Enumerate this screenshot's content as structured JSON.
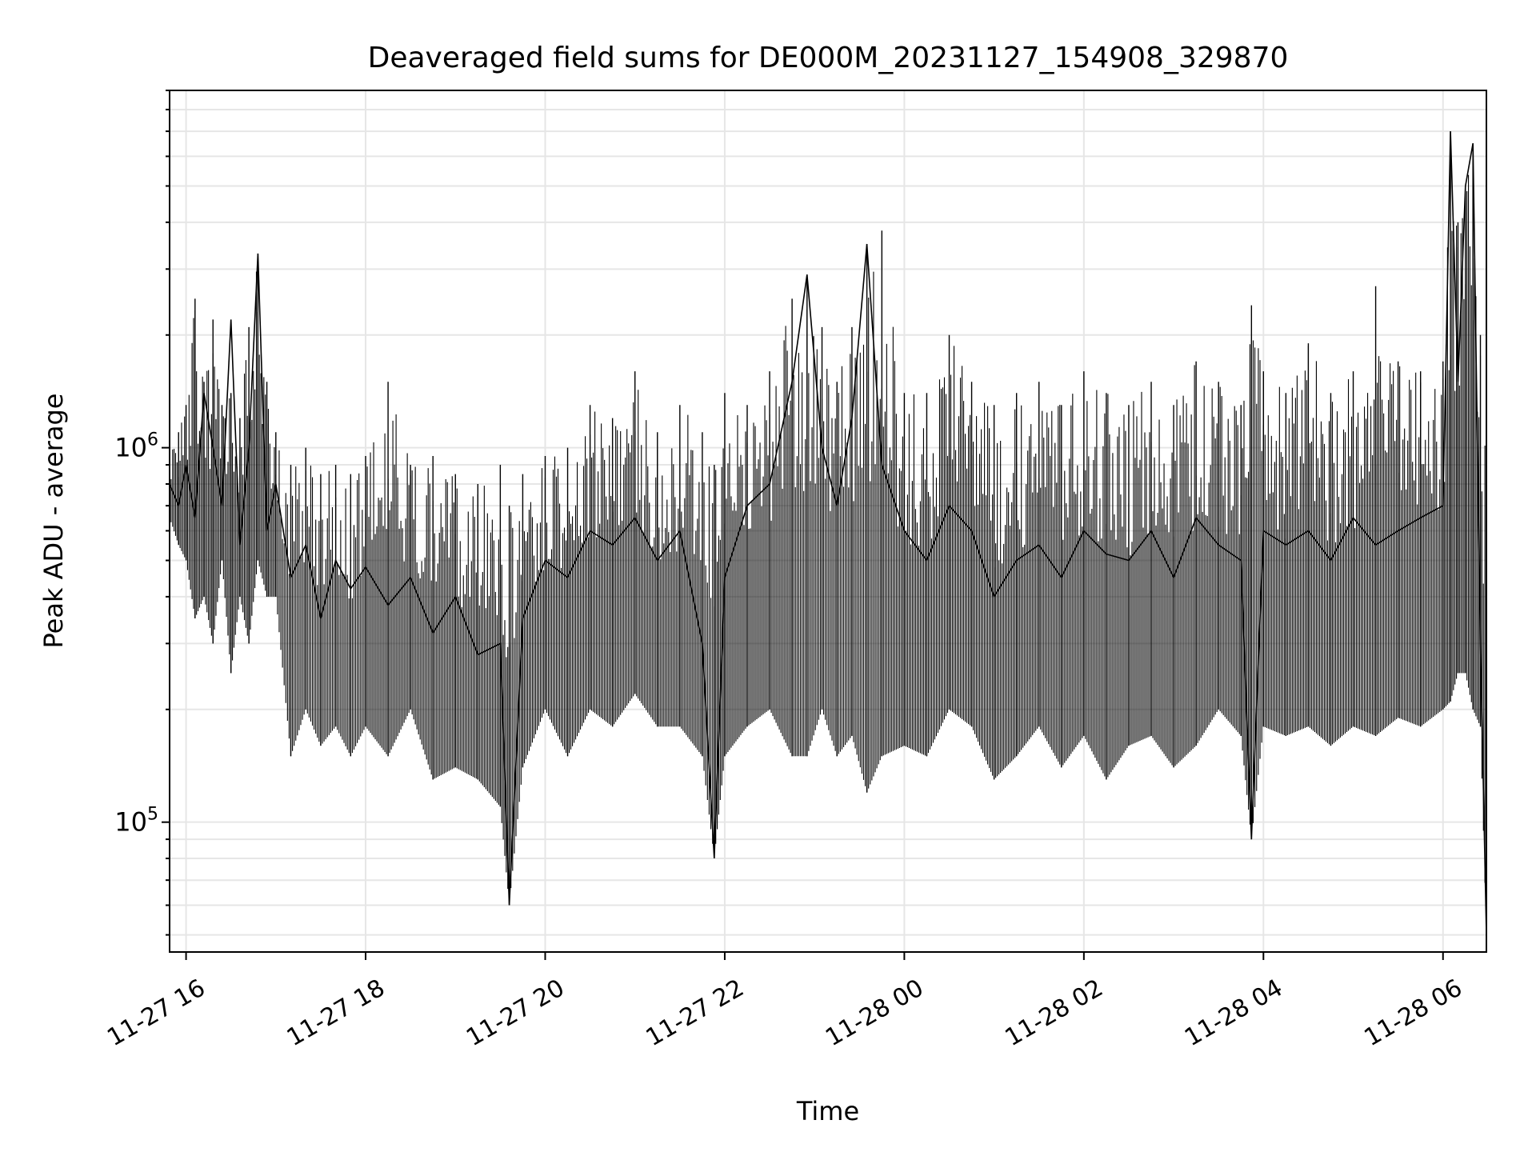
{
  "chart_data": {
    "type": "line",
    "title": "Deaveraged field sums for DE000M_20231127_154908_329870",
    "xlabel": "Time",
    "ylabel": "Peak ADU - average",
    "yscale": "log",
    "xlim": [
      "2023-11-27 15:49",
      "2023-11-28 06:29"
    ],
    "ylim": [
      45000,
      9000000
    ],
    "grid": true,
    "line_color": "#000000",
    "grid_color": "#e6e6e6",
    "x_ticks": [
      {
        "label": "11-27 16",
        "value": "2023-11-27 16:00"
      },
      {
        "label": "11-27 18",
        "value": "2023-11-27 18:00"
      },
      {
        "label": "11-27 20",
        "value": "2023-11-27 20:00"
      },
      {
        "label": "11-27 22",
        "value": "2023-11-27 22:00"
      },
      {
        "label": "11-28 00",
        "value": "2023-11-28 00:00"
      },
      {
        "label": "11-28 02",
        "value": "2023-11-28 02:00"
      },
      {
        "label": "11-28 04",
        "value": "2023-11-28 04:00"
      },
      {
        "label": "11-28 06",
        "value": "2023-11-28 06:00"
      }
    ],
    "y_ticks": [
      {
        "base": "10",
        "exp": "5",
        "value": 100000
      },
      {
        "base": "10",
        "exp": "6",
        "value": 1000000
      }
    ],
    "series": [
      {
        "x": [
          "2023-11-27 15:49",
          "2023-11-27 15:55",
          "2023-11-27 16:00",
          "2023-11-27 16:06",
          "2023-11-27 16:12",
          "2023-11-27 16:18",
          "2023-11-27 16:24",
          "2023-11-27 16:30",
          "2023-11-27 16:36",
          "2023-11-27 16:42",
          "2023-11-27 16:48",
          "2023-11-27 16:54",
          "2023-11-27 17:00",
          "2023-11-27 17:10",
          "2023-11-27 17:20",
          "2023-11-27 17:30",
          "2023-11-27 17:40",
          "2023-11-27 17:50",
          "2023-11-27 18:00",
          "2023-11-27 18:15",
          "2023-11-27 18:30",
          "2023-11-27 18:45",
          "2023-11-27 19:00",
          "2023-11-27 19:15",
          "2023-11-27 19:30",
          "2023-11-27 19:36",
          "2023-11-27 19:45",
          "2023-11-27 20:00",
          "2023-11-27 20:15",
          "2023-11-27 20:30",
          "2023-11-27 20:45",
          "2023-11-27 21:00",
          "2023-11-27 21:15",
          "2023-11-27 21:30",
          "2023-11-27 21:45",
          "2023-11-27 21:53",
          "2023-11-27 22:00",
          "2023-11-27 22:15",
          "2023-11-27 22:30",
          "2023-11-27 22:45",
          "2023-11-27 22:55",
          "2023-11-27 23:05",
          "2023-11-27 23:15",
          "2023-11-27 23:25",
          "2023-11-27 23:35",
          "2023-11-27 23:45",
          "2023-11-28 00:00",
          "2023-11-28 00:15",
          "2023-11-28 00:30",
          "2023-11-28 00:45",
          "2023-11-28 01:00",
          "2023-11-28 01:15",
          "2023-11-28 01:30",
          "2023-11-28 01:45",
          "2023-11-28 02:00",
          "2023-11-28 02:15",
          "2023-11-28 02:30",
          "2023-11-28 02:45",
          "2023-11-28 03:00",
          "2023-11-28 03:15",
          "2023-11-28 03:30",
          "2023-11-28 03:45",
          "2023-11-28 03:52",
          "2023-11-28 04:00",
          "2023-11-28 04:15",
          "2023-11-28 04:30",
          "2023-11-28 04:45",
          "2023-11-28 05:00",
          "2023-11-28 05:15",
          "2023-11-28 05:30",
          "2023-11-28 05:45",
          "2023-11-28 06:00",
          "2023-11-28 06:05",
          "2023-11-28 06:10",
          "2023-11-28 06:15",
          "2023-11-28 06:20",
          "2023-11-28 06:25",
          "2023-11-28 06:29"
        ],
        "y": [
          800000,
          700000,
          900000,
          650000,
          1400000,
          1000000,
          700000,
          2200000,
          550000,
          1000000,
          3300000,
          600000,
          800000,
          450000,
          550000,
          350000,
          500000,
          420000,
          480000,
          380000,
          450000,
          320000,
          400000,
          280000,
          300000,
          60000,
          350000,
          500000,
          450000,
          600000,
          550000,
          650000,
          500000,
          600000,
          300000,
          80000,
          450000,
          700000,
          800000,
          1500000,
          2900000,
          1000000,
          700000,
          1200000,
          3500000,
          900000,
          600000,
          500000,
          700000,
          600000,
          400000,
          500000,
          550000,
          450000,
          600000,
          520000,
          500000,
          600000,
          450000,
          650000,
          550000,
          500000,
          90000,
          600000,
          550000,
          600000,
          500000,
          650000,
          550000,
          600000,
          650000,
          700000,
          7000000,
          1500000,
          5000000,
          6500000,
          300000,
          50000
        ],
        "low": [
          650000,
          550000,
          500000,
          350000,
          400000,
          300000,
          500000,
          250000,
          400000,
          300000,
          500000,
          400000,
          400000,
          150000,
          200000,
          160000,
          180000,
          150000,
          180000,
          150000,
          200000,
          130000,
          140000,
          130000,
          110000,
          60000,
          140000,
          200000,
          150000,
          200000,
          180000,
          220000,
          180000,
          180000,
          150000,
          80000,
          150000,
          180000,
          200000,
          150000,
          150000,
          200000,
          150000,
          170000,
          120000,
          150000,
          160000,
          150000,
          200000,
          180000,
          130000,
          150000,
          180000,
          140000,
          170000,
          130000,
          160000,
          170000,
          140000,
          160000,
          200000,
          170000,
          90000,
          180000,
          170000,
          180000,
          160000,
          180000,
          170000,
          190000,
          180000,
          200000,
          210000,
          250000,
          250000,
          200000,
          180000,
          50000
        ],
        "high": [
          950000,
          1100000,
          1300000,
          2500000,
          1500000,
          2200000,
          1300000,
          1400000,
          1200000,
          2100000,
          3300000,
          1500000,
          1100000,
          900000,
          1000000,
          850000,
          900000,
          850000,
          950000,
          1500000,
          900000,
          950000,
          850000,
          800000,
          900000,
          700000,
          850000,
          950000,
          1000000,
          1300000,
          1200000,
          1600000,
          1100000,
          1300000,
          1100000,
          900000,
          1400000,
          1300000,
          1600000,
          2500000,
          2900000,
          2100000,
          1500000,
          2100000,
          3500000,
          3800000,
          1400000,
          1400000,
          2000000,
          1500000,
          1300000,
          1400000,
          1500000,
          1300000,
          1600000,
          1400000,
          1300000,
          1500000,
          1300000,
          1700000,
          1500000,
          1300000,
          2400000,
          1600000,
          1400000,
          1900000,
          1400000,
          1600000,
          2700000,
          1700000,
          1600000,
          1700000,
          7000000,
          4000000,
          5000000,
          6500000,
          2000000,
          1000000
        ]
      }
    ]
  }
}
